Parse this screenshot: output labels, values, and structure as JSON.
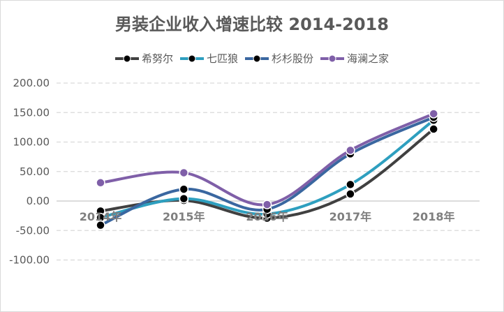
{
  "chart_data": {
    "type": "line",
    "title": "男装企业收入增速比较 2014-2018",
    "categories": [
      "2014年",
      "2015年",
      "2016年",
      "2017年",
      "2018年"
    ],
    "ylim": [
      -100,
      200
    ],
    "yticks": [
      "-100.00",
      "-50.00",
      "0.00",
      "50.00",
      "100.00",
      "150.00",
      "200.00"
    ],
    "grid": true,
    "legend": "top",
    "smooth": true,
    "series": [
      {
        "name": "希努尔",
        "color": "#404040",
        "marker": "#000000",
        "values": [
          -17,
          1,
          -29,
          12,
          122
        ]
      },
      {
        "name": "七匹狼",
        "color": "#2e9fbf",
        "marker": "#000000",
        "values": [
          -28,
          4,
          -22,
          28,
          137
        ]
      },
      {
        "name": "杉杉股份",
        "color": "#3a67a0",
        "marker": "#000000",
        "values": [
          -41,
          20,
          -14,
          80,
          142
        ]
      },
      {
        "name": "海澜之家",
        "color": "#7f5fa8",
        "marker": "#7f5fa8",
        "values": [
          31,
          48,
          -6,
          86,
          148
        ]
      }
    ]
  }
}
